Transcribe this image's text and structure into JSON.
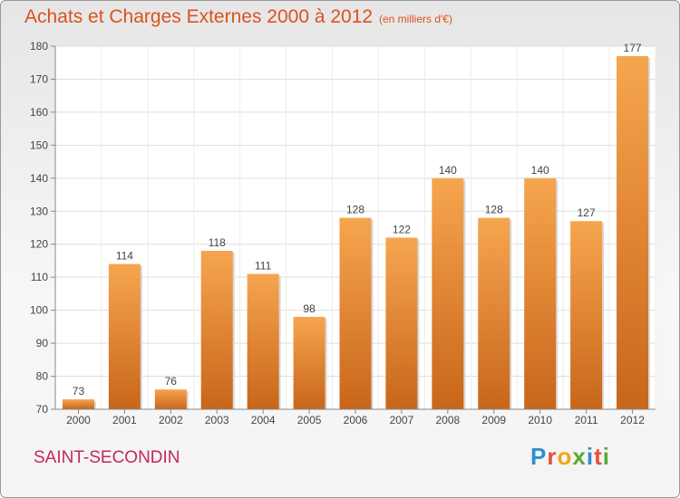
{
  "header": {
    "title": "Achats et Charges Externes 2000 à 2012",
    "subtitle": "(en milliers d'€)"
  },
  "footer": {
    "city": "SAINT-SECONDIN",
    "logo": "Proxiti",
    "logo_letters": [
      {
        "char": "P",
        "color": "#2f8fd0"
      },
      {
        "char": "r",
        "color": "#e94f3a"
      },
      {
        "char": "o",
        "color": "#f2a51a"
      },
      {
        "char": "x",
        "color": "#5aa832"
      },
      {
        "char": "i",
        "color": "#2f8fd0"
      },
      {
        "char": "t",
        "color": "#e94f3a"
      },
      {
        "char": "i",
        "color": "#5aa832"
      }
    ]
  },
  "colors": {
    "bar_light": "#f6a54f",
    "bar_dark": "#c8661a",
    "accent": "#d9531e",
    "city": "#c22a57"
  },
  "chart_data": {
    "type": "bar",
    "categories": [
      "2000",
      "2001",
      "2002",
      "2003",
      "2004",
      "2005",
      "2006",
      "2007",
      "2008",
      "2009",
      "2010",
      "2011",
      "2012"
    ],
    "values": [
      73,
      114,
      76,
      118,
      111,
      98,
      128,
      122,
      140,
      128,
      140,
      127,
      177
    ],
    "title": "Achats et Charges Externes 2000 à 2012",
    "subtitle": "(en milliers d'€)",
    "xlabel": "",
    "ylabel": "",
    "ylim": [
      70,
      180
    ],
    "yticks": [
      70,
      80,
      90,
      100,
      110,
      120,
      130,
      140,
      150,
      160,
      170,
      180
    ],
    "grid": true,
    "data_labels": true
  }
}
